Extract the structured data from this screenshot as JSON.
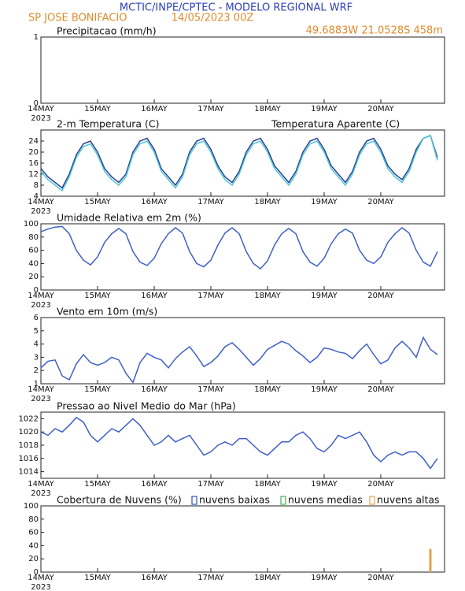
{
  "header": {
    "title": "MCTIC/INPE/CPTEC - MODELO REGIONAL WRF",
    "location": "SP JOSE BONIFACIO",
    "run": "14/05/2023 00Z",
    "coords": "49.6883W 21.0528S 458m"
  },
  "chart_data": [
    {
      "type": "bar",
      "title": "Precipitacao (mm/h)",
      "xlim": [
        0,
        171
      ],
      "xticks": [
        {
          "value": 0,
          "label": "14MAY"
        },
        {
          "value": 24,
          "label": "15MAY"
        },
        {
          "value": 48,
          "label": "16MAY"
        },
        {
          "value": 72,
          "label": "17MAY"
        },
        {
          "value": 96,
          "label": "18MAY"
        },
        {
          "value": 120,
          "label": "19MAY"
        },
        {
          "value": 144,
          "label": "20MAY"
        }
      ],
      "year": "2023",
      "ylim": [
        0,
        1
      ],
      "yticks": [
        0,
        1
      ],
      "x": [],
      "series": []
    },
    {
      "type": "line",
      "title": "2-m Temperatura (C)",
      "xlim": [
        0,
        171
      ],
      "xticks": [
        {
          "value": 0,
          "label": "14MAY"
        },
        {
          "value": 24,
          "label": "15MAY"
        },
        {
          "value": 48,
          "label": "16MAY"
        },
        {
          "value": 72,
          "label": "17MAY"
        },
        {
          "value": 96,
          "label": "18MAY"
        },
        {
          "value": 120,
          "label": "19MAY"
        },
        {
          "value": 144,
          "label": "20MAY"
        }
      ],
      "year": "2023",
      "ylim": [
        4,
        28
      ],
      "yticks": [
        4,
        8,
        12,
        16,
        20,
        24
      ],
      "x": [
        0,
        3,
        6,
        9,
        12,
        15,
        18,
        21,
        24,
        27,
        30,
        33,
        36,
        39,
        42,
        45,
        48,
        51,
        54,
        57,
        60,
        63,
        66,
        69,
        72,
        75,
        78,
        81,
        84,
        87,
        90,
        93,
        96,
        99,
        102,
        105,
        108,
        111,
        114,
        117,
        120,
        123,
        126,
        129,
        132,
        135,
        138,
        141,
        144,
        147,
        150,
        153,
        156,
        159,
        162,
        165,
        168
      ],
      "series": [
        {
          "color": "#2a3f8f",
          "values": [
            14,
            11,
            9,
            7,
            12,
            19,
            23,
            24,
            20,
            14,
            11,
            9,
            12,
            20,
            24,
            25,
            21,
            14,
            11,
            8,
            12,
            20,
            24,
            25,
            21,
            15,
            11,
            9,
            13,
            20,
            24,
            25,
            21,
            15,
            12,
            9,
            13,
            20,
            24,
            25,
            21,
            15,
            12,
            9,
            13,
            20,
            24,
            25,
            21,
            15,
            12,
            10,
            14,
            21,
            25,
            26,
            18
          ]
        },
        {
          "name": "Temperatura Aparente (C)",
          "color": "#4cc6d8",
          "values": [
            13,
            10,
            8,
            6,
            11,
            18,
            22,
            23,
            19,
            13,
            10,
            8,
            11,
            19,
            23,
            24,
            20,
            13,
            10,
            7,
            11,
            19,
            23,
            24,
            20,
            14,
            10,
            8,
            12,
            19,
            23,
            24,
            20,
            14,
            11,
            8,
            12,
            19,
            23,
            24,
            20,
            14,
            11,
            8,
            12,
            19,
            23,
            24,
            20,
            14,
            11,
            9,
            13,
            20,
            25,
            26,
            17
          ]
        }
      ]
    },
    {
      "type": "line",
      "title": "Umidade Relativa em 2m (%)",
      "xlim": [
        0,
        171
      ],
      "xticks": [
        {
          "value": 0,
          "label": "14MAY"
        },
        {
          "value": 24,
          "label": "15MAY"
        },
        {
          "value": 48,
          "label": "16MAY"
        },
        {
          "value": 72,
          "label": "17MAY"
        },
        {
          "value": 96,
          "label": "18MAY"
        },
        {
          "value": 120,
          "label": "19MAY"
        },
        {
          "value": 144,
          "label": "20MAY"
        }
      ],
      "year": "2023",
      "ylim": [
        0,
        100
      ],
      "yticks": [
        0,
        20,
        40,
        60,
        80,
        100
      ],
      "x": [
        0,
        3,
        6,
        9,
        12,
        15,
        18,
        21,
        24,
        27,
        30,
        33,
        36,
        39,
        42,
        45,
        48,
        51,
        54,
        57,
        60,
        63,
        66,
        69,
        72,
        75,
        78,
        81,
        84,
        87,
        90,
        93,
        96,
        99,
        102,
        105,
        108,
        111,
        114,
        117,
        120,
        123,
        126,
        129,
        132,
        135,
        138,
        141,
        144,
        147,
        150,
        153,
        156,
        159,
        162,
        165,
        168
      ],
      "series": [
        {
          "color": "#3f5fc8",
          "values": [
            88,
            92,
            95,
            96,
            85,
            60,
            45,
            38,
            50,
            72,
            85,
            93,
            85,
            58,
            42,
            37,
            48,
            70,
            85,
            94,
            86,
            58,
            40,
            35,
            45,
            68,
            86,
            94,
            85,
            58,
            40,
            32,
            44,
            68,
            85,
            93,
            85,
            58,
            42,
            36,
            48,
            70,
            85,
            92,
            86,
            60,
            45,
            40,
            50,
            72,
            85,
            94,
            86,
            60,
            42,
            36,
            58
          ]
        }
      ]
    },
    {
      "type": "line",
      "title": "Vento em 10m (m/s)",
      "xlim": [
        0,
        171
      ],
      "xticks": [
        {
          "value": 0,
          "label": "14MAY"
        },
        {
          "value": 24,
          "label": "15MAY"
        },
        {
          "value": 48,
          "label": "16MAY"
        },
        {
          "value": 72,
          "label": "17MAY"
        },
        {
          "value": 96,
          "label": "18MAY"
        },
        {
          "value": 120,
          "label": "19MAY"
        },
        {
          "value": 144,
          "label": "20MAY"
        }
      ],
      "year": "2023",
      "ylim": [
        1,
        6
      ],
      "yticks": [
        1,
        2,
        3,
        4,
        5,
        6
      ],
      "x": [
        0,
        3,
        6,
        9,
        12,
        15,
        18,
        21,
        24,
        27,
        30,
        33,
        36,
        39,
        42,
        45,
        48,
        51,
        54,
        57,
        60,
        63,
        66,
        69,
        72,
        75,
        78,
        81,
        84,
        87,
        90,
        93,
        96,
        99,
        102,
        105,
        108,
        111,
        114,
        117,
        120,
        123,
        126,
        129,
        132,
        135,
        138,
        141,
        144,
        147,
        150,
        153,
        156,
        159,
        162,
        165,
        168
      ],
      "series": [
        {
          "color": "#3f5fc8",
          "values": [
            2.2,
            2.7,
            2.8,
            1.6,
            1.3,
            2.5,
            3.2,
            2.6,
            2.4,
            2.6,
            3.0,
            2.8,
            1.8,
            1.1,
            2.6,
            3.3,
            3.0,
            2.8,
            2.2,
            2.9,
            3.4,
            3.8,
            3.1,
            2.3,
            2.6,
            3.1,
            3.8,
            4.1,
            3.6,
            3.0,
            2.4,
            2.9,
            3.6,
            3.9,
            4.2,
            4.0,
            3.5,
            3.1,
            2.6,
            3.0,
            3.7,
            3.6,
            3.4,
            3.3,
            2.9,
            3.5,
            4.0,
            3.2,
            2.5,
            2.8,
            3.7,
            4.2,
            3.7,
            3.0,
            4.5,
            3.6,
            3.2
          ]
        }
      ]
    },
    {
      "type": "line",
      "title": "Pressao ao Nivel Medio do Mar (hPa)",
      "xlim": [
        0,
        171
      ],
      "xticks": [
        {
          "value": 0,
          "label": "14MAY"
        },
        {
          "value": 24,
          "label": "15MAY"
        },
        {
          "value": 48,
          "label": "16MAY"
        },
        {
          "value": 72,
          "label": "17MAY"
        },
        {
          "value": 96,
          "label": "18MAY"
        },
        {
          "value": 120,
          "label": "19MAY"
        },
        {
          "value": 144,
          "label": "20MAY"
        }
      ],
      "year": "2023",
      "ylim": [
        1013,
        1023
      ],
      "yticks": [
        1014,
        1016,
        1018,
        1020,
        1022
      ],
      "x": [
        0,
        3,
        6,
        9,
        12,
        15,
        18,
        21,
        24,
        27,
        30,
        33,
        36,
        39,
        42,
        45,
        48,
        51,
        54,
        57,
        60,
        63,
        66,
        69,
        72,
        75,
        78,
        81,
        84,
        87,
        90,
        93,
        96,
        99,
        102,
        105,
        108,
        111,
        114,
        117,
        120,
        123,
        126,
        129,
        132,
        135,
        138,
        141,
        144,
        147,
        150,
        153,
        156,
        159,
        162,
        165,
        168
      ],
      "series": [
        {
          "color": "#3f5fc8",
          "values": [
            1020,
            1019.5,
            1020.5,
            1020,
            1021,
            1022.2,
            1021.5,
            1019.5,
            1018.5,
            1019.5,
            1020.5,
            1020,
            1021,
            1022,
            1021,
            1019.5,
            1018,
            1018.5,
            1019.5,
            1018.5,
            1019,
            1019.5,
            1018,
            1016.5,
            1017,
            1018,
            1018.5,
            1018,
            1019,
            1019,
            1018,
            1017,
            1016.5,
            1017.5,
            1018.5,
            1018.5,
            1019.5,
            1020,
            1019,
            1017.5,
            1017,
            1018,
            1019.5,
            1019,
            1019.5,
            1020,
            1018.5,
            1016.5,
            1015.5,
            1016.5,
            1017,
            1016.5,
            1017,
            1017,
            1016,
            1014.5,
            1016
          ]
        }
      ]
    },
    {
      "type": "bar",
      "title": "Cobertura de Nuvens (%)",
      "xlim": [
        0,
        171
      ],
      "xticks": [
        {
          "value": 0,
          "label": "14MAY"
        },
        {
          "value": 24,
          "label": "15MAY"
        },
        {
          "value": 48,
          "label": "16MAY"
        },
        {
          "value": 72,
          "label": "17MAY"
        },
        {
          "value": 96,
          "label": "18MAY"
        },
        {
          "value": 120,
          "label": "19MAY"
        },
        {
          "value": 144,
          "label": "20MAY"
        }
      ],
      "year": "2023",
      "ylim": [
        0,
        100
      ],
      "yticks": [
        0,
        20,
        40,
        60,
        80,
        100
      ],
      "x": [
        165
      ],
      "series": [
        {
          "name": "nuvens baixas",
          "color": "#2b4fc4",
          "values": [
            0
          ]
        },
        {
          "name": "nuvens medias",
          "color": "#4caf50",
          "values": [
            0
          ]
        },
        {
          "name": "nuvens altas",
          "color": "#e8a04a",
          "values": [
            35
          ]
        }
      ]
    }
  ]
}
